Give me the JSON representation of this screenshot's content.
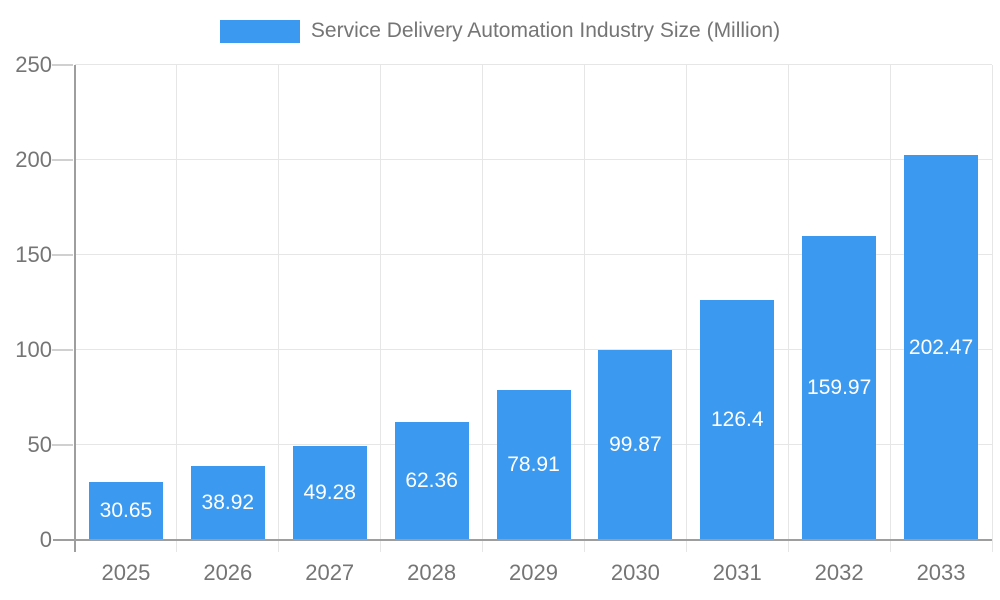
{
  "legend": {
    "label": "Service Delivery Automation Industry Size (Million)"
  },
  "chart_data": {
    "type": "bar",
    "title": "Service Delivery Automation Industry Size (Million)",
    "categories": [
      "2025",
      "2026",
      "2027",
      "2028",
      "2029",
      "2030",
      "2031",
      "2032",
      "2033"
    ],
    "values": [
      30.65,
      38.92,
      49.28,
      62.36,
      78.91,
      99.87,
      126.4,
      159.97,
      202.47
    ],
    "series_name": "Service Delivery Automation Industry Size (Million)",
    "xlabel": "",
    "ylabel": "",
    "ylim": [
      0,
      250
    ],
    "yticks": [
      0,
      50,
      100,
      150,
      200,
      250
    ],
    "grid": true,
    "legend_position": "top",
    "value_labels_shown": true
  },
  "colors": {
    "bar": "#3b99f0",
    "grid": "#e6e6e6",
    "tick": "#d0d0d0",
    "axis": "#9e9e9e",
    "text": "#757575",
    "value_text": "#ffffff",
    "background": "#ffffff"
  }
}
